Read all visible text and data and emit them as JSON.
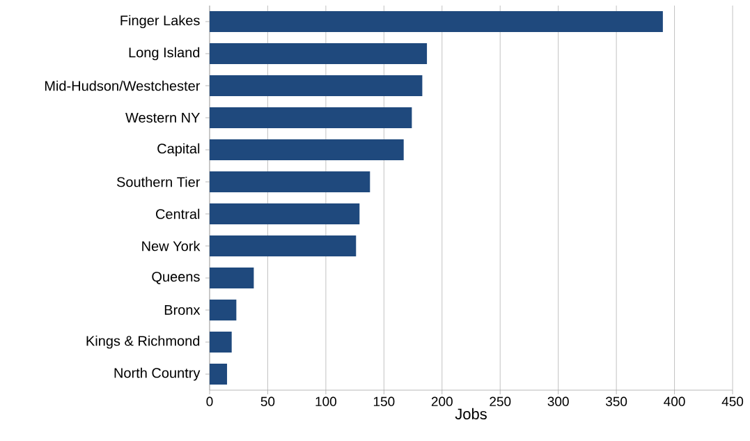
{
  "chart_data": {
    "type": "bar",
    "orientation": "horizontal",
    "xlabel": "Jobs",
    "categories": [
      "Finger Lakes",
      "Long Island",
      "Mid-Hudson/Westchester",
      "Western NY",
      "Capital",
      "Southern Tier",
      "Central",
      "New York",
      "Queens",
      "Bronx",
      "Kings & Richmond",
      "North Country"
    ],
    "values": [
      390,
      187,
      183,
      174,
      167,
      138,
      129,
      126,
      38,
      23,
      19,
      15
    ],
    "color": "#1f497d",
    "xlim": [
      0,
      450
    ],
    "xticks": [
      0,
      50,
      100,
      150,
      200,
      250,
      300,
      350,
      400,
      450
    ],
    "grid": "x"
  }
}
